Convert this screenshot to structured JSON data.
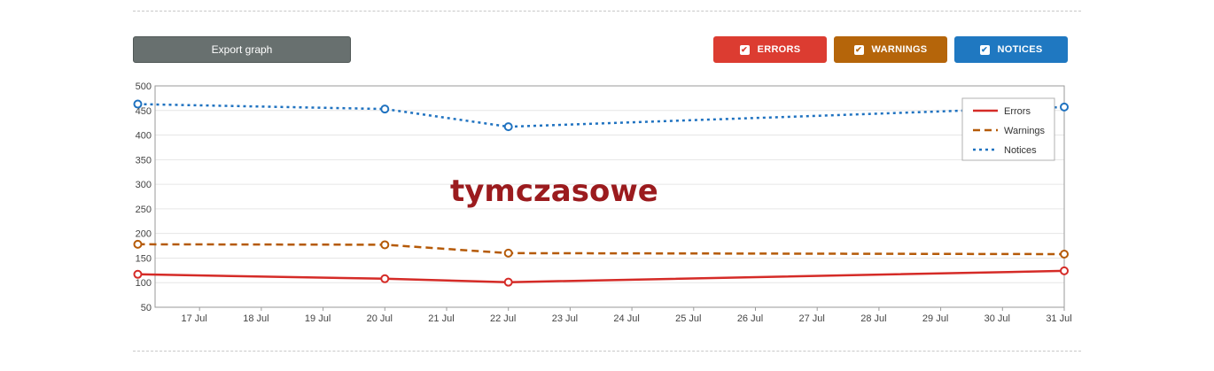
{
  "toolbar": {
    "export_label": "Export graph"
  },
  "toggles": [
    {
      "label": "ERRORS",
      "checked": true,
      "color": "#dc3c31"
    },
    {
      "label": "WARNINGS",
      "checked": true,
      "color": "#b5650a"
    },
    {
      "label": "NOTICES",
      "checked": true,
      "color": "#1f78c1"
    }
  ],
  "watermark": "tymczasowe",
  "chart_data": {
    "type": "line",
    "x_labels": [
      "17 Jul",
      "18 Jul",
      "19 Jul",
      "20 Jul",
      "21 Jul",
      "22 Jul",
      "23 Jul",
      "24 Jul",
      "25 Jul",
      "26 Jul",
      "27 Jul",
      "28 Jul",
      "29 Jul",
      "30 Jul",
      "31 Jul"
    ],
    "ylim": [
      50,
      500
    ],
    "yticks": [
      50,
      100,
      150,
      200,
      250,
      300,
      350,
      400,
      450,
      500
    ],
    "grid": true,
    "legend_position": "top-right",
    "series": [
      {
        "name": "Errors",
        "color": "#d52b27",
        "dash": "solid",
        "points": [
          [
            "16 Jul",
            117
          ],
          [
            "20 Jul",
            108
          ],
          [
            "22 Jul",
            101
          ],
          [
            "31 Jul",
            124
          ]
        ]
      },
      {
        "name": "Warnings",
        "color": "#b55a08",
        "dash": "dashed",
        "points": [
          [
            "16 Jul",
            178
          ],
          [
            "20 Jul",
            177
          ],
          [
            "22 Jul",
            160
          ],
          [
            "31 Jul",
            158
          ]
        ]
      },
      {
        "name": "Notices",
        "color": "#1f72c0",
        "dash": "dotted",
        "points": [
          [
            "16 Jul",
            463
          ],
          [
            "20 Jul",
            453
          ],
          [
            "22 Jul",
            417
          ],
          [
            "31 Jul",
            457
          ]
        ]
      }
    ]
  }
}
